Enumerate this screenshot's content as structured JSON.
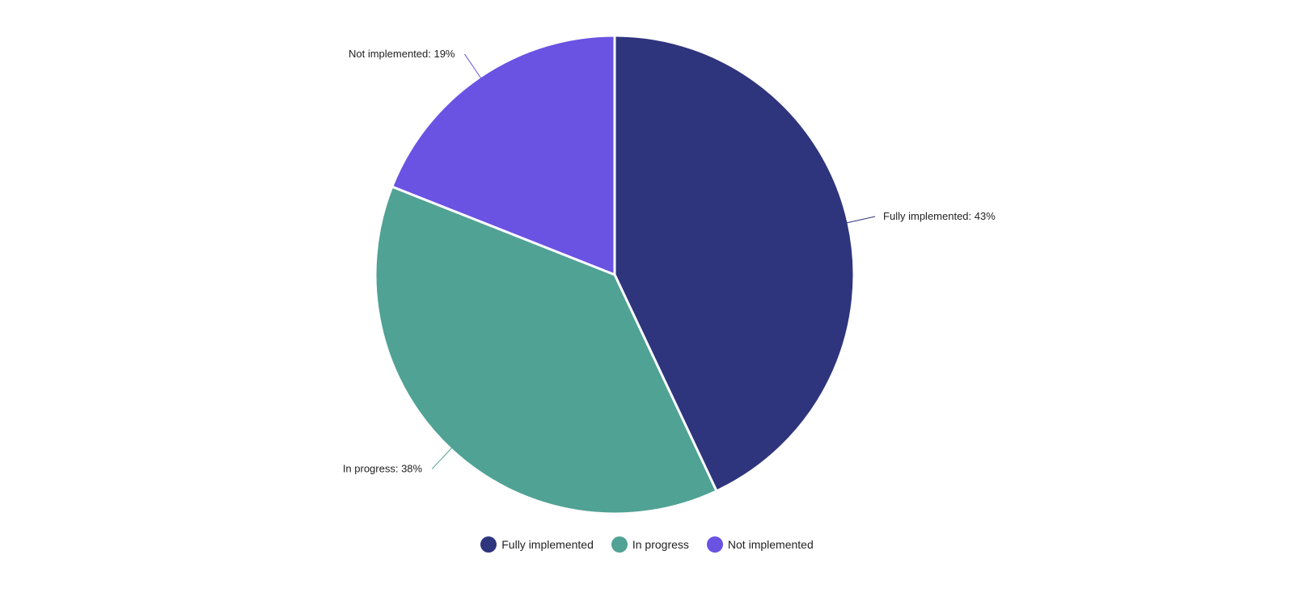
{
  "chart_data": {
    "type": "pie",
    "slices": [
      {
        "label": "Fully implemented",
        "value": 43,
        "color": "#2e357c",
        "data_label": "Fully implemented: 43%"
      },
      {
        "label": "In progress",
        "value": 38,
        "color": "#50a294",
        "data_label": "In progress: 38%"
      },
      {
        "label": "Not implemented",
        "value": 19,
        "color": "#6a52e3",
        "data_label": "Not implemented: 19%"
      }
    ],
    "start_angle": "12 o'clock",
    "direction": "clockwise",
    "legend_position": "bottom"
  }
}
